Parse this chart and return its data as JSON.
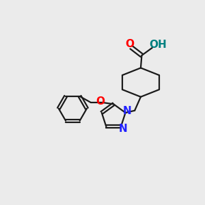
{
  "bg_color": "#ebebeb",
  "bond_color": "#1a1a1a",
  "N_color": "#2020ff",
  "O_color": "#ff0000",
  "OH_color": "#008080",
  "figsize": [
    3.0,
    3.0
  ],
  "dpi": 100,
  "xlim": [
    0,
    10
  ],
  "ylim": [
    0,
    10
  ]
}
